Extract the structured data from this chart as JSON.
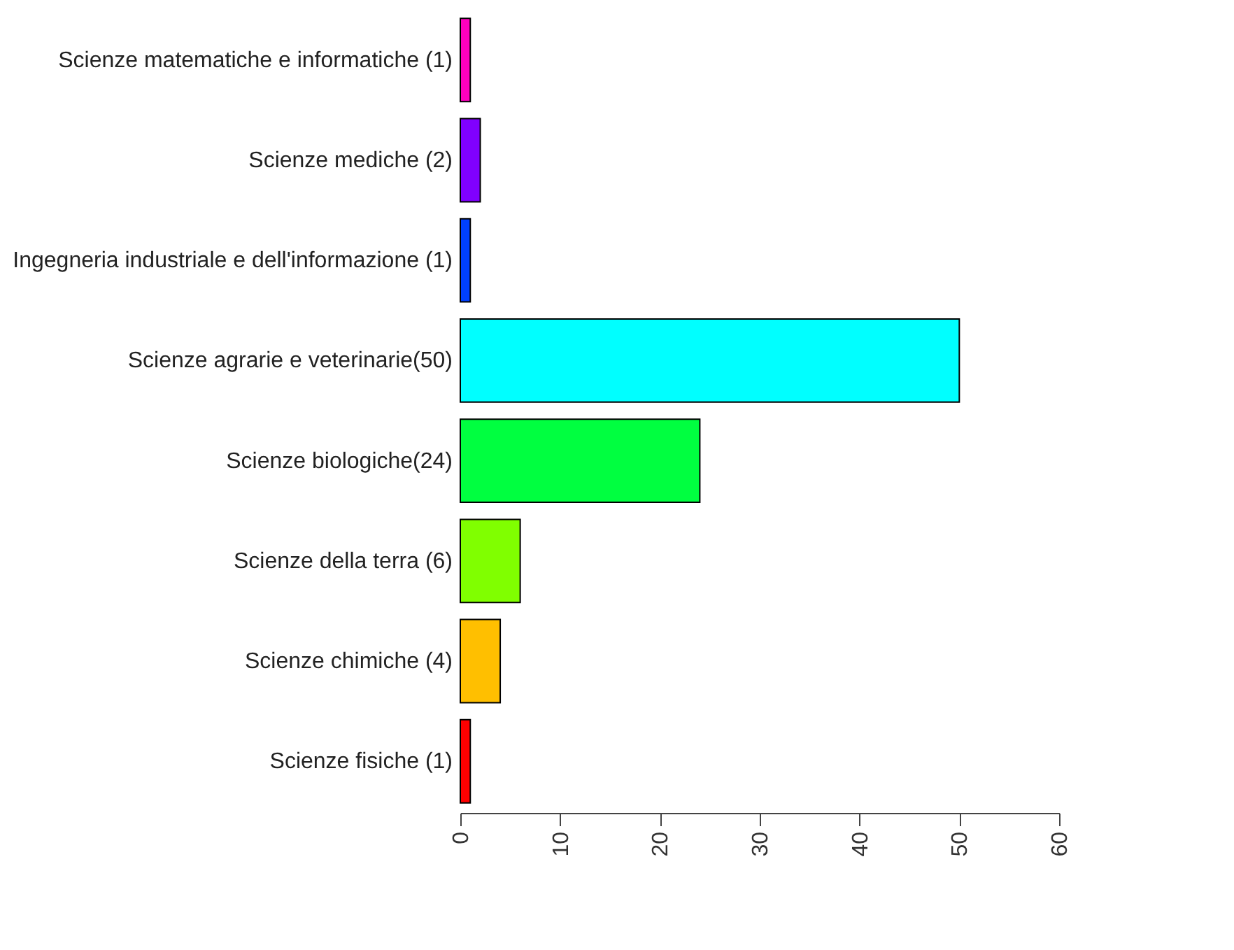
{
  "chart_data": {
    "type": "bar",
    "orientation": "horizontal",
    "categories": [
      "Scienze matematiche e informatiche (1)",
      "Scienze mediche (2)",
      "Ingegneria industriale e dell'informazione (1)",
      "Scienze agrarie e veterinarie(50)",
      "Scienze biologiche(24)",
      "Scienze della terra  (6)",
      "Scienze chimiche  (4)",
      "Scienze fisiche (1)"
    ],
    "values": [
      1,
      2,
      1,
      50,
      24,
      6,
      4,
      1
    ],
    "colors": [
      "#ff00bf",
      "#8000ff",
      "#0040ff",
      "#00ffff",
      "#00ff40",
      "#80ff00",
      "#ffbf00",
      "#ff0000"
    ],
    "xlim": [
      0,
      60
    ],
    "xticks": [
      0,
      10,
      20,
      30,
      40,
      50,
      60
    ],
    "grid": false,
    "legend": false
  }
}
